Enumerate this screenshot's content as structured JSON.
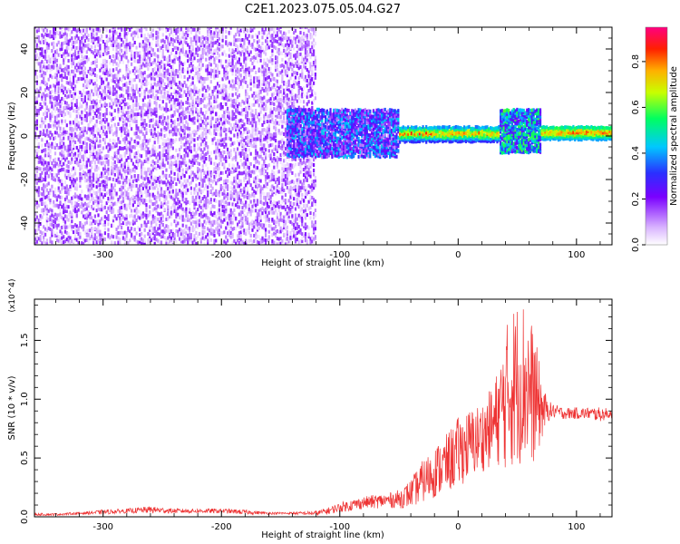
{
  "figure": {
    "title": "C2E1.2023.075.05.04.G27"
  },
  "chart_data": [
    {
      "type": "heatmap",
      "title": "C2E1.2023.075.05.04.G27",
      "xlabel": "Height of straight line (km)",
      "ylabel": "Frequency (Hz)",
      "xlim": [
        -358,
        130
      ],
      "ylim": [
        -50,
        50
      ],
      "x_ticks": [
        -300,
        -200,
        -100,
        0,
        100
      ],
      "x_tick_labels": [
        "-300",
        "-200",
        "-100",
        "0",
        "100"
      ],
      "y_ticks": [
        -40,
        -20,
        0,
        20,
        40
      ],
      "y_tick_labels": [
        "-40",
        "-20",
        "0",
        "20",
        "40"
      ],
      "colorbar": {
        "label": "Normalized spectral amplitude",
        "range": [
          0,
          0.95
        ],
        "ticks": [
          0,
          0.2,
          0.4,
          0.6,
          0.8
        ],
        "tick_labels": [
          "0.0",
          "0.2",
          "0.4",
          "0.6",
          "0.8"
        ],
        "colormap": "rainbow (white-purple-blue-cyan-green-yellow-red-pink)"
      },
      "regions": [
        {
          "x": [
            -358,
            -120
          ],
          "freq_band": [
            -50,
            50
          ],
          "amplitude": [
            0.02,
            0.2
          ],
          "pattern": "scattered broadband noise"
        },
        {
          "x": [
            -145,
            -50
          ],
          "freq_band": [
            -10,
            12
          ],
          "amplitude": [
            0.1,
            0.45
          ],
          "pattern": "spread band"
        },
        {
          "x": [
            -50,
            35
          ],
          "freq_band": [
            -3,
            4
          ],
          "center_hz": 1,
          "amplitude": [
            0.3,
            0.9
          ],
          "pattern": "narrow line"
        },
        {
          "x": [
            35,
            70
          ],
          "freq_band": [
            -8,
            12
          ],
          "amplitude": [
            0.2,
            0.6
          ],
          "pattern": "spread band"
        },
        {
          "x": [
            70,
            130
          ],
          "freq_band": [
            -2,
            4
          ],
          "center_hz": 1.5,
          "amplitude": [
            0.4,
            0.9
          ],
          "pattern": "narrow line"
        }
      ],
      "grid": false
    },
    {
      "type": "line",
      "xlabel": "Height of straight line (km)",
      "ylabel": "SNR (10 * v/v)",
      "y_multiplier": "(x10^4)",
      "xlim": [
        -358,
        130
      ],
      "ylim": [
        0,
        1.85
      ],
      "x_ticks": [
        -300,
        -200,
        -100,
        0,
        100
      ],
      "x_tick_labels": [
        "-300",
        "-200",
        "-100",
        "0",
        "100"
      ],
      "y_ticks": [
        0,
        0.5,
        1.0,
        1.5
      ],
      "y_tick_labels": [
        "0.0",
        "0.5",
        "1.0",
        "1.5"
      ],
      "color": "#ee3333",
      "series": [
        {
          "x": [
            -358,
            -340,
            -320,
            -300,
            -280,
            -260,
            -240,
            -220,
            -200,
            -180,
            -160,
            -140,
            -120,
            -110,
            -100,
            -90,
            -80,
            -70,
            -60,
            -50,
            -40,
            -30,
            -20,
            -10,
            0,
            10,
            20,
            30,
            35,
            40,
            45,
            50,
            55,
            60,
            65,
            70,
            75,
            80,
            90,
            100,
            110,
            120,
            130
          ],
          "values": [
            0.02,
            0.02,
            0.03,
            0.04,
            0.05,
            0.06,
            0.05,
            0.05,
            0.05,
            0.04,
            0.03,
            0.03,
            0.03,
            0.05,
            0.08,
            0.1,
            0.12,
            0.13,
            0.14,
            0.15,
            0.2,
            0.3,
            0.38,
            0.45,
            0.55,
            0.62,
            0.68,
            0.78,
            0.88,
            1.0,
            1.1,
            1.15,
            1.15,
            1.1,
            1.0,
            0.92,
            0.9,
            0.9,
            0.88,
            0.88,
            0.88,
            0.87,
            0.88
          ],
          "noise": [
            0.01,
            0.01,
            0.01,
            0.02,
            0.02,
            0.03,
            0.02,
            0.02,
            0.02,
            0.02,
            0.01,
            0.01,
            0.02,
            0.03,
            0.04,
            0.05,
            0.05,
            0.06,
            0.06,
            0.08,
            0.12,
            0.18,
            0.22,
            0.25,
            0.3,
            0.3,
            0.3,
            0.35,
            0.45,
            0.6,
            0.7,
            0.7,
            0.72,
            0.65,
            0.55,
            0.3,
            0.1,
            0.06,
            0.05,
            0.05,
            0.05,
            0.06,
            0.04
          ]
        }
      ],
      "grid": false
    }
  ]
}
